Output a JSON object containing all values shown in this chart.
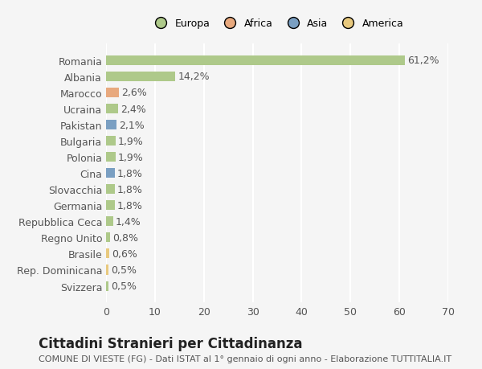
{
  "categories": [
    "Romania",
    "Albania",
    "Marocco",
    "Ucraina",
    "Pakistan",
    "Bulgaria",
    "Polonia",
    "Cina",
    "Slovacchia",
    "Germania",
    "Repubblica Ceca",
    "Regno Unito",
    "Brasile",
    "Rep. Dominicana",
    "Svizzera"
  ],
  "values": [
    61.2,
    14.2,
    2.6,
    2.4,
    2.1,
    1.9,
    1.9,
    1.8,
    1.8,
    1.8,
    1.4,
    0.8,
    0.6,
    0.5,
    0.5
  ],
  "labels": [
    "61,2%",
    "14,2%",
    "2,6%",
    "2,4%",
    "2,1%",
    "1,9%",
    "1,9%",
    "1,8%",
    "1,8%",
    "1,8%",
    "1,4%",
    "0,8%",
    "0,6%",
    "0,5%",
    "0,5%"
  ],
  "colors": [
    "#aec98a",
    "#aec98a",
    "#e8a97e",
    "#aec98a",
    "#7a9fc2",
    "#aec98a",
    "#aec98a",
    "#7a9fc2",
    "#aec98a",
    "#aec98a",
    "#aec98a",
    "#aec98a",
    "#e8c97e",
    "#e8c97e",
    "#aec98a"
  ],
  "legend_labels": [
    "Europa",
    "Africa",
    "Asia",
    "America"
  ],
  "legend_colors": [
    "#aec98a",
    "#e8a97e",
    "#7a9fc2",
    "#e8c97e"
  ],
  "xlim": [
    0,
    70
  ],
  "xticks": [
    0,
    10,
    20,
    30,
    40,
    50,
    60,
    70
  ],
  "title": "Cittadini Stranieri per Cittadinanza",
  "subtitle": "COMUNE DI VIESTE (FG) - Dati ISTAT al 1° gennaio di ogni anno - Elaborazione TUTTITALIA.IT",
  "background_color": "#f5f5f5",
  "bar_height": 0.6,
  "grid_color": "#ffffff",
  "label_fontsize": 9,
  "tick_fontsize": 9,
  "title_fontsize": 12,
  "subtitle_fontsize": 8
}
